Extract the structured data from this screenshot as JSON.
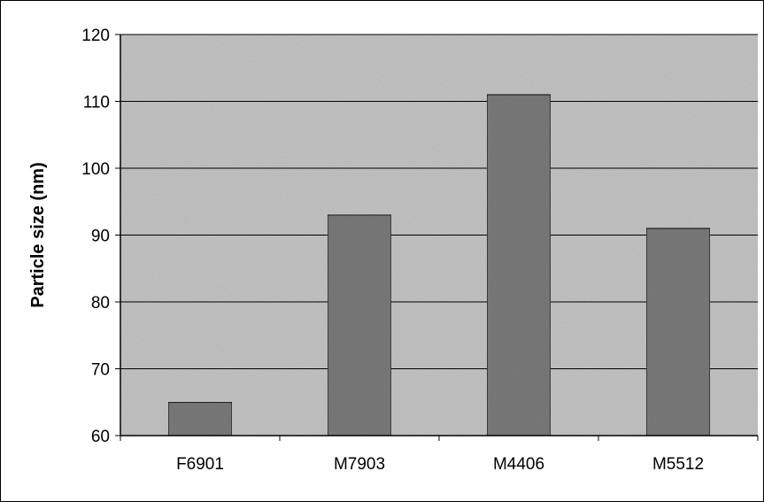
{
  "chart_data": {
    "type": "bar",
    "title": "",
    "xlabel": "",
    "ylabel": "Particle size (nm)",
    "categories": [
      "F6901",
      "M7903",
      "M4406",
      "M5512"
    ],
    "values": [
      65,
      93,
      111,
      91
    ],
    "ylim": [
      60,
      120
    ],
    "yticks": [
      60,
      70,
      80,
      90,
      100,
      110,
      120
    ],
    "grid": true,
    "legend": "none",
    "colors": {
      "plot_background": "#c4c4c4",
      "bar_fill": "#7a7a7a",
      "bar_stroke": "#000000",
      "gridline": "#000000"
    }
  }
}
